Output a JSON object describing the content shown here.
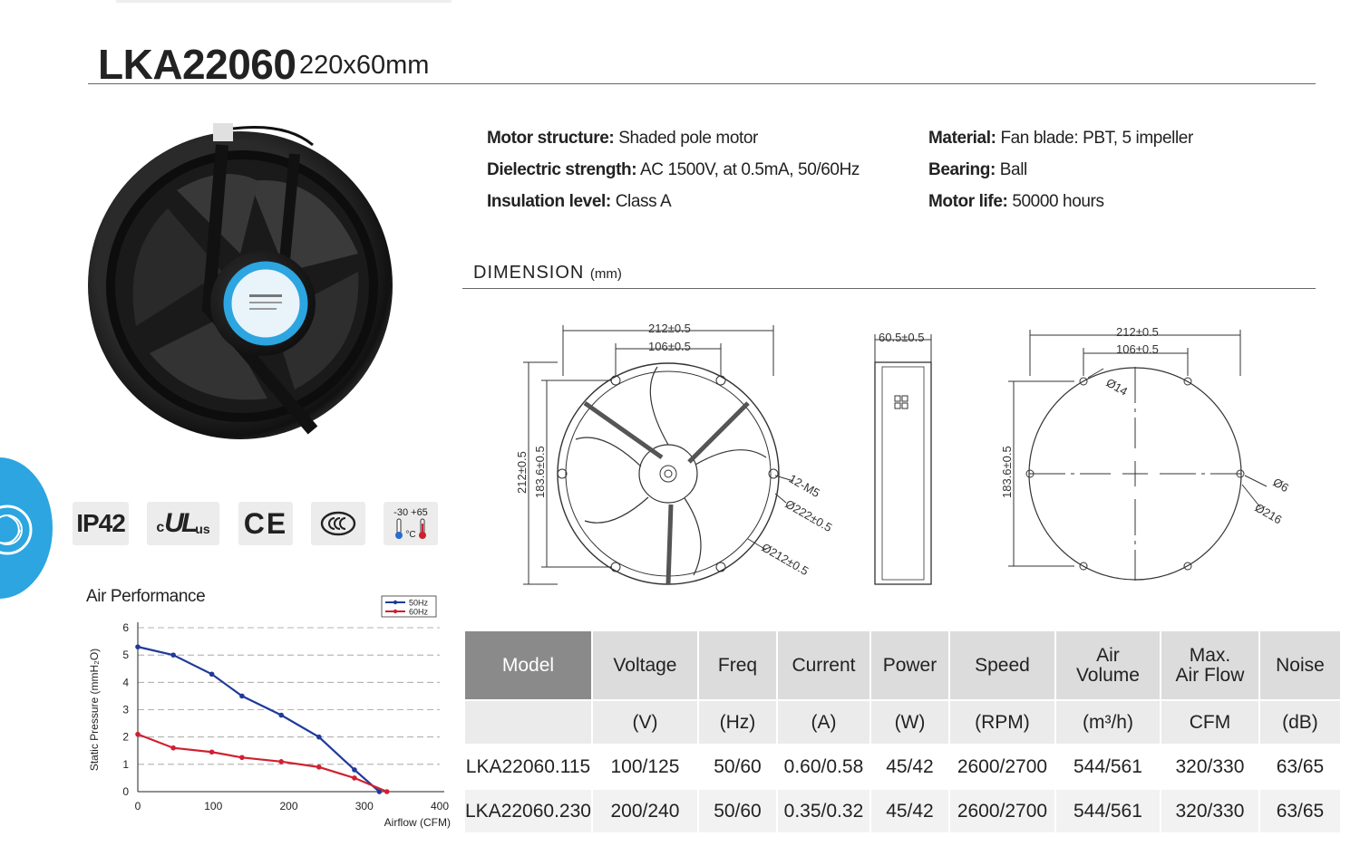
{
  "header": {
    "title": "LKA22060",
    "subtitle": "220x60mm"
  },
  "specs": {
    "left": [
      {
        "label": "Motor structure:",
        "value": "Shaded pole motor"
      },
      {
        "label": "Dielectric strength:",
        "value": "AC 1500V, at 0.5mA, 50/60Hz"
      },
      {
        "label": "Insulation level:",
        "value": "Class A"
      }
    ],
    "right": [
      {
        "label": "Material:",
        "value": "Fan blade: PBT, 5 impeller"
      },
      {
        "label": "Bearing:",
        "value": "Ball"
      },
      {
        "label": "Motor life:",
        "value": "50000 hours"
      }
    ]
  },
  "dimension": {
    "title": "DIMENSION",
    "unit": "(mm)",
    "front": {
      "width_outer": "212±0.5",
      "width_inner": "106±0.5",
      "height_outer": "212±0.5",
      "height_inner": "183.6±0.5",
      "screw": "12-M5",
      "dia_outer": "Ø222±0.5",
      "dia_inner": "Ø212±0.5"
    },
    "side": {
      "depth": "60.5±0.5"
    },
    "back": {
      "width_outer": "212±0.5",
      "width_inner": "106±0.5",
      "height": "183.6±0.5",
      "hole_large": "Ø14",
      "hole_small": "Ø6",
      "dia": "Ø216"
    }
  },
  "badges": {
    "ip": "IP42",
    "ul_c": "c",
    "ul": "UL",
    "ul_us": "us",
    "ce": "CE",
    "temp_low": "-30",
    "temp_high": "+65",
    "temp_unit": "°C"
  },
  "air_performance": {
    "title": "Air Performance"
  },
  "chart_data": {
    "type": "line",
    "xlabel": "Airflow (CFM)",
    "ylabel": "Static Pressure (mmH₂O)",
    "xlim": [
      0,
      400
    ],
    "ylim": [
      0,
      6
    ],
    "xticks": [
      0,
      100,
      200,
      300,
      400
    ],
    "yticks": [
      0,
      1,
      2,
      3,
      4,
      5,
      6
    ],
    "grid": "horizontal-dashed",
    "legend_position": "top-right",
    "series": [
      {
        "name": "50Hz",
        "color": "#1f3a9a",
        "x": [
          0,
          47,
          98,
          138,
          190,
          240,
          287,
          320
        ],
        "y": [
          5.3,
          5.0,
          4.3,
          3.5,
          2.8,
          2.0,
          0.8,
          0.0
        ]
      },
      {
        "name": "60Hz",
        "color": "#d02030",
        "x": [
          0,
          47,
          98,
          138,
          190,
          240,
          287,
          330
        ],
        "y": [
          2.1,
          1.6,
          1.45,
          1.25,
          1.1,
          0.9,
          0.5,
          0.0
        ]
      }
    ]
  },
  "table": {
    "headers": [
      "Model",
      "Voltage",
      "Freq",
      "Current",
      "Power",
      "Speed",
      "Air\nVolume",
      "Max.\nAir Flow",
      "Noise"
    ],
    "units": [
      "",
      "(V)",
      "(Hz)",
      "(A)",
      "(W)",
      "(RPM)",
      "(m³/h)",
      "CFM",
      "(dB)"
    ],
    "rows": [
      [
        "LKA22060.115",
        "100/125",
        "50/60",
        "0.60/0.58",
        "45/42",
        "2600/2700",
        "544/561",
        "320/330",
        "63/65"
      ],
      [
        "LKA22060.230",
        "200/240",
        "50/60",
        "0.35/0.32",
        "45/42",
        "2600/2700",
        "544/561",
        "320/330",
        "63/65"
      ]
    ]
  },
  "colors": {
    "accent_blue": "#2ca5e0",
    "table_header": "#dcdcdc",
    "model_header": "#8a8a8a"
  }
}
